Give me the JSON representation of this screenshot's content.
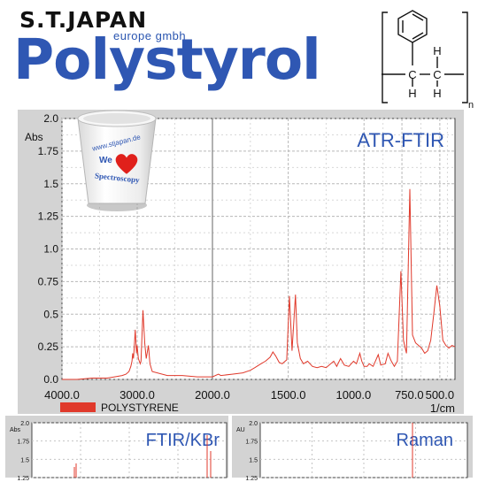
{
  "brand": {
    "name": "S.T.JAPAN",
    "sub": "europe gmbh"
  },
  "title": "Polystyrol",
  "structure": {
    "atoms": [
      "C",
      "H",
      "H",
      "C",
      "H"
    ],
    "subscript": "n"
  },
  "cup": {
    "text_top": "www.stjapan.de",
    "text_we": "We",
    "text_bottom": "Spectroscopy"
  },
  "colors": {
    "brand_blue": "#2f57b3",
    "spectrum": "#e0392b",
    "panel": "#d3d3d3",
    "grid": "#b8b8b8"
  },
  "legend": {
    "label": "POLYSTYRENE"
  },
  "chart_data": [
    {
      "type": "line",
      "title": "ATR-FTIR",
      "ylabel": "Abs",
      "xlabel": "1/cm",
      "xlim": [
        4000,
        400
      ],
      "ylim": [
        0,
        2.0
      ],
      "grid": true,
      "yticks": [
        "0.0",
        "0.25",
        "0.5",
        "0.75",
        "1.0",
        "1.25",
        "1.5",
        "1.75",
        "2.0"
      ],
      "xticks": [
        "4000.0",
        "3000.0",
        "2000.0",
        "1500.0",
        "1000.0",
        "750.0",
        "500.0"
      ],
      "series": [
        {
          "name": "POLYSTYRENE",
          "x": [
            4000,
            3800,
            3600,
            3400,
            3300,
            3200,
            3150,
            3110,
            3085,
            3070,
            3060,
            3050,
            3040,
            3026,
            3010,
            3001,
            2985,
            2960,
            2950,
            2923,
            2900,
            2880,
            2851,
            2830,
            2800,
            2600,
            2400,
            2200,
            2000,
            1960,
            1945,
            1870,
            1800,
            1750,
            1720,
            1680,
            1650,
            1620,
            1601,
            1583,
            1560,
            1540,
            1510,
            1492,
            1475,
            1452,
            1440,
            1420,
            1400,
            1372,
            1340,
            1310,
            1280,
            1250,
            1200,
            1180,
            1155,
            1130,
            1100,
            1069,
            1050,
            1028,
            1015,
            1000,
            980,
            965,
            940,
            906,
            890,
            860,
            842,
            820,
            800,
            780,
            757,
            740,
            720,
            698,
            680,
            660,
            640,
            620,
            600,
            580,
            560,
            540,
            520,
            500,
            480,
            460,
            440,
            420,
            400
          ],
          "values": [
            0.0,
            0.0,
            0.01,
            0.01,
            0.02,
            0.03,
            0.04,
            0.06,
            0.1,
            0.14,
            0.2,
            0.16,
            0.24,
            0.38,
            0.2,
            0.26,
            0.16,
            0.12,
            0.14,
            0.53,
            0.28,
            0.16,
            0.26,
            0.12,
            0.06,
            0.03,
            0.03,
            0.02,
            0.02,
            0.04,
            0.03,
            0.04,
            0.05,
            0.07,
            0.09,
            0.12,
            0.14,
            0.17,
            0.21,
            0.18,
            0.13,
            0.12,
            0.15,
            0.64,
            0.22,
            0.65,
            0.28,
            0.16,
            0.12,
            0.14,
            0.1,
            0.09,
            0.1,
            0.09,
            0.14,
            0.1,
            0.16,
            0.11,
            0.1,
            0.14,
            0.12,
            0.2,
            0.14,
            0.1,
            0.1,
            0.12,
            0.1,
            0.19,
            0.11,
            0.12,
            0.2,
            0.14,
            0.1,
            0.14,
            0.83,
            0.3,
            0.2,
            1.46,
            0.34,
            0.28,
            0.26,
            0.24,
            0.2,
            0.22,
            0.3,
            0.5,
            0.72,
            0.56,
            0.3,
            0.26,
            0.24,
            0.26,
            0.25
          ]
        }
      ]
    },
    {
      "type": "line",
      "title": "FTIR/KBr",
      "ylabel": "Abs",
      "ylim": [
        1.25,
        2.0
      ],
      "grid": true,
      "yticks": [
        "2.0",
        "1.75",
        "1.5",
        "1.25"
      ]
    },
    {
      "type": "line",
      "title": "Raman",
      "ylabel": "AU",
      "ylim": [
        1.25,
        2.0
      ],
      "grid": true,
      "yticks": [
        "2.0",
        "1.75",
        "1.5",
        "1.25"
      ]
    }
  ]
}
